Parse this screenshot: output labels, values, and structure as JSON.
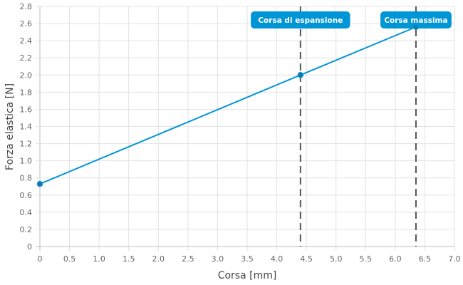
{
  "chart_data": {
    "type": "line",
    "title": "",
    "xlabel": "Corsa [mm]",
    "ylabel": "Forza elastica [N]",
    "xlim": [
      0,
      7.0
    ],
    "ylim": [
      0,
      2.8
    ],
    "xticks": [
      "0",
      "0.5",
      "1.0",
      "1.5",
      "2.0",
      "2.5",
      "3.0",
      "3.5",
      "4.0",
      "4.5",
      "5.0",
      "5.5",
      "6.0",
      "6.5",
      "7.0"
    ],
    "yticks": [
      "0",
      "0.2",
      "0.4",
      "0.6",
      "0.8",
      "1.0",
      "1.2",
      "1.4",
      "1.6",
      "1.8",
      "2.0",
      "2.2",
      "2.4",
      "2.6",
      "2.8"
    ],
    "grid": true,
    "series": [
      {
        "x": [
          0,
          4.4,
          6.35
        ],
        "y": [
          0.73,
          2.0,
          2.56
        ],
        "color": "#0096d6"
      }
    ],
    "annotations": [
      {
        "label": "Corsa di espansione",
        "x": 4.4
      },
      {
        "label": "Corsa massima",
        "x": 6.35
      }
    ],
    "annotation_color": "#0096d6"
  }
}
